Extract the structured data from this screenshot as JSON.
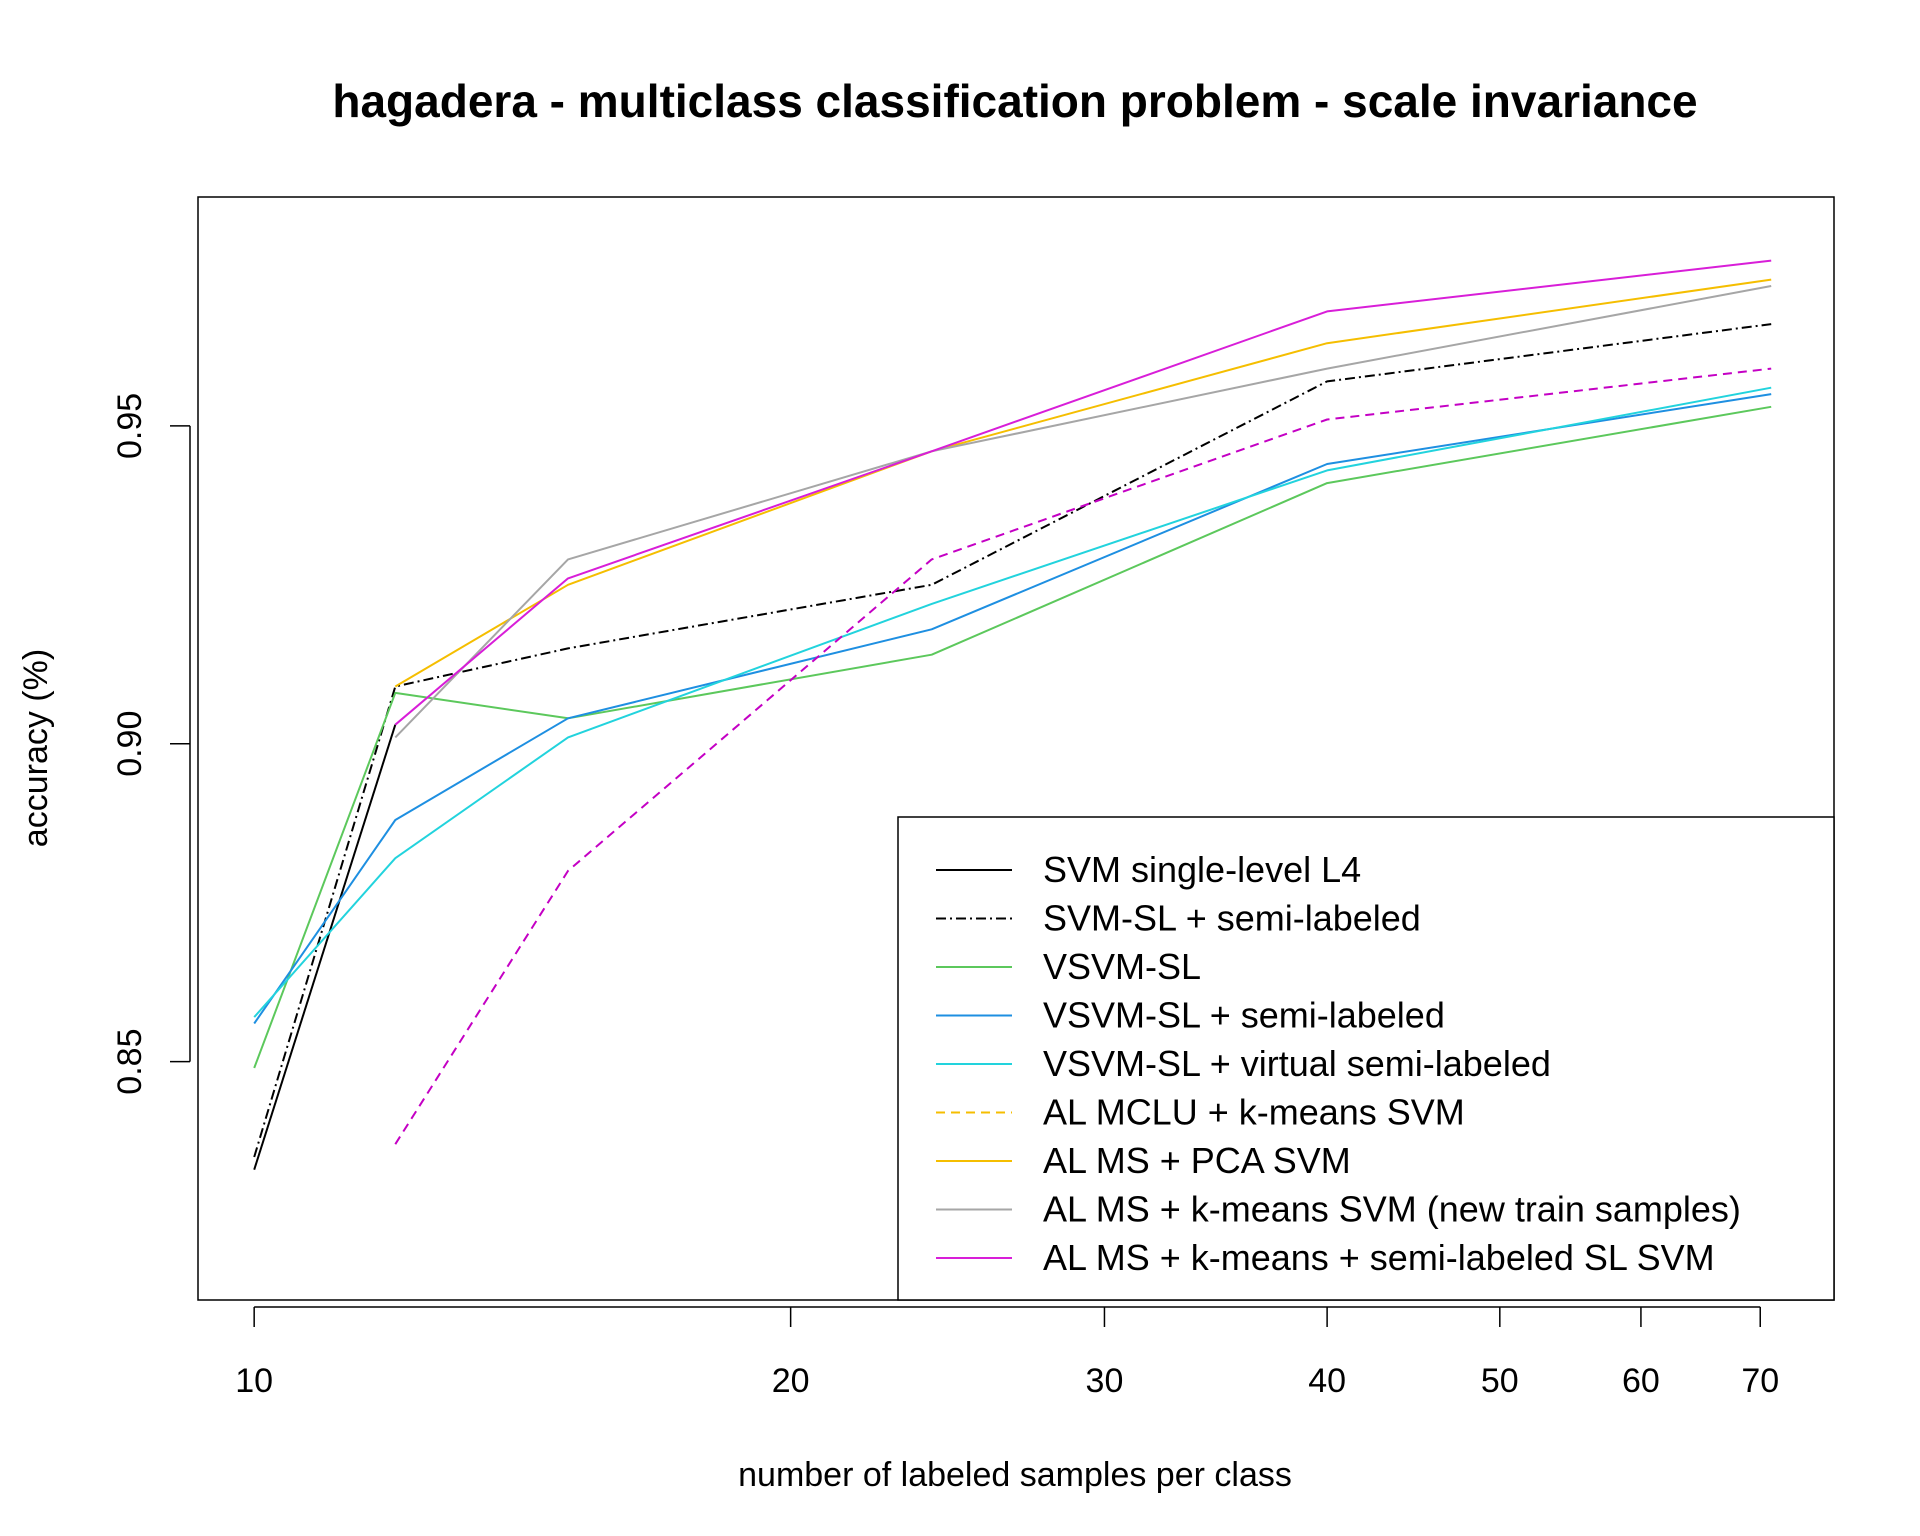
{
  "chart_data": {
    "type": "line",
    "title": "hagadera - multiclass classification problem - scale invariance",
    "xlabel": "number of labeled samples per class",
    "ylabel": "accuracy (%)",
    "x_scale": "log",
    "xlim": [
      9.3,
      77
    ],
    "ylim": [
      0.8125,
      0.986
    ],
    "x_ticks": [
      10,
      20,
      30,
      40,
      50,
      60,
      70
    ],
    "y_ticks": [
      0.85,
      0.9,
      0.95
    ],
    "y_tick_labels": [
      "0.85",
      "0.90",
      "0.95"
    ],
    "grid": false,
    "legend_position": "bottom-right",
    "series": [
      {
        "name": "SVM single-level L4",
        "color": "#000000",
        "dash": "solid",
        "x": [
          10,
          12
        ],
        "y": [
          0.833,
          0.903
        ]
      },
      {
        "name": "SVM-SL + semi-labeled",
        "color": "#000000",
        "dash": "dashdot",
        "x": [
          10,
          12,
          15,
          24,
          40,
          71
        ],
        "y": [
          0.835,
          0.909,
          0.915,
          0.925,
          0.957,
          0.966
        ]
      },
      {
        "name": "VSVM-SL",
        "color": "#5CC85C",
        "dash": "solid",
        "x": [
          10,
          12,
          15,
          24,
          40,
          71
        ],
        "y": [
          0.849,
          0.908,
          0.904,
          0.914,
          0.941,
          0.953
        ]
      },
      {
        "name": "VSVM-SL + semi-labeled",
        "color": "#1E8FE1",
        "dash": "solid",
        "x": [
          10,
          12,
          15,
          24,
          40,
          71
        ],
        "y": [
          0.856,
          0.888,
          0.904,
          0.918,
          0.944,
          0.955
        ]
      },
      {
        "name": "VSVM-SL + virtual semi-labeled",
        "color": "#22D3DD",
        "dash": "solid",
        "x": [
          10,
          12,
          15,
          24,
          40,
          71
        ],
        "y": [
          0.857,
          0.882,
          0.901,
          0.922,
          0.943,
          0.956
        ]
      },
      {
        "name": "AL MCLU + k-means SVM",
        "color": "#C400C4",
        "dash": "dashed",
        "legend_color": "#F5BE00",
        "x": [
          12,
          15,
          24,
          40,
          71
        ],
        "y": [
          0.837,
          0.88,
          0.929,
          0.951,
          0.959
        ]
      },
      {
        "name": "AL MS + PCA SVM",
        "color": "#F5BE00",
        "dash": "solid",
        "x": [
          12,
          15,
          24,
          40,
          71
        ],
        "y": [
          0.909,
          0.925,
          0.946,
          0.963,
          0.973
        ]
      },
      {
        "name": "AL MS + k-means SVM (new train samples)",
        "color": "#A6A6A6",
        "dash": "solid",
        "x": [
          12,
          15,
          24,
          40,
          71
        ],
        "y": [
          0.901,
          0.929,
          0.946,
          0.959,
          0.972
        ]
      },
      {
        "name": "AL MS + k-means + semi-labeled SL SVM",
        "color": "#D81ED8",
        "dash": "solid",
        "x": [
          12,
          15,
          24,
          40,
          71
        ],
        "y": [
          0.903,
          0.926,
          0.946,
          0.968,
          0.976
        ]
      }
    ]
  }
}
